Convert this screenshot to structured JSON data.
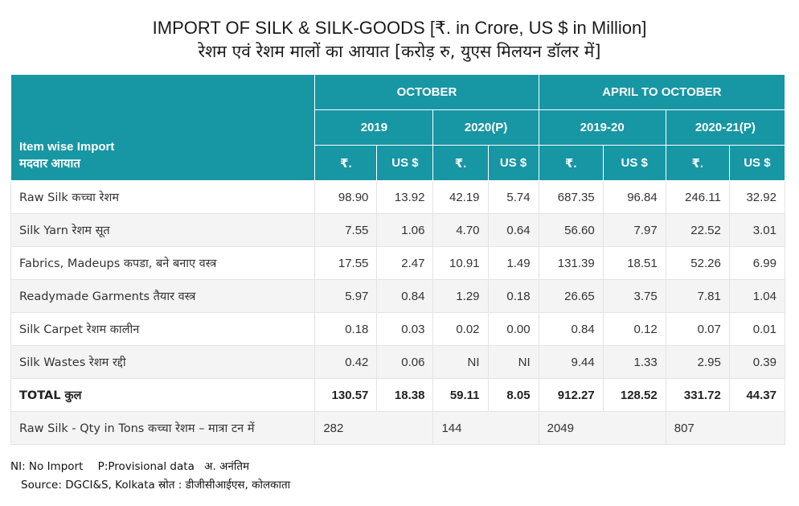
{
  "title_en": "IMPORT OF SILK & SILK-GOODS  [₹. in Crore, US $ in Million]",
  "title_hi": "रेशम एवं रेशम मालों का आयात [करोड़ रु, युएस मिलयन डॉलर में]",
  "table": {
    "item_head_en": "Item wise Import",
    "item_head_hi": "मदवार आयात",
    "groups": [
      "OCTOBER",
      "APRIL TO OCTOBER"
    ],
    "years": [
      "2019",
      "2020(P)",
      "2019-20",
      "2020-21(P)"
    ],
    "units": [
      "₹.",
      "US $",
      "₹.",
      "US $",
      "₹.",
      "US $",
      "₹.",
      "US $"
    ],
    "rows": [
      {
        "label": "Raw Silk कच्चा रेशम",
        "values": [
          "98.90",
          "13.92",
          "42.19",
          "5.74",
          "687.35",
          "96.84",
          "246.11",
          "32.92"
        ]
      },
      {
        "label": "Silk Yarn रेशम सूत",
        "values": [
          "7.55",
          "1.06",
          "4.70",
          "0.64",
          "56.60",
          "7.97",
          "22.52",
          "3.01"
        ]
      },
      {
        "label": "Fabrics, Madeups कपडा, बने बनाए वस्त्र",
        "values": [
          "17.55",
          "2.47",
          "10.91",
          "1.49",
          "131.39",
          "18.51",
          "52.26",
          "6.99"
        ]
      },
      {
        "label": "Readymade Garments तैयार वस्त्र",
        "values": [
          "5.97",
          "0.84",
          "1.29",
          "0.18",
          "26.65",
          "3.75",
          "7.81",
          "1.04"
        ]
      },
      {
        "label": "Silk Carpet रेशम कालीन",
        "values": [
          "0.18",
          "0.03",
          "0.02",
          "0.00",
          "0.84",
          "0.12",
          "0.07",
          "0.01"
        ]
      },
      {
        "label": "Silk Wastes रेशम रद्दी",
        "values": [
          "0.42",
          "0.06",
          "NI",
          "NI",
          "9.44",
          "1.33",
          "2.95",
          "0.39"
        ]
      }
    ],
    "total": {
      "label": "TOTAL कुल",
      "values": [
        "130.57",
        "18.38",
        "59.11",
        "8.05",
        "912.27",
        "128.52",
        "331.72",
        "44.37"
      ]
    },
    "qty": {
      "label": "Raw Silk - Qty in Tons कच्चा रेशम – मात्रा टन में",
      "values": [
        "282",
        "144",
        "2049",
        "807"
      ]
    }
  },
  "footer": {
    "note_ni": "NI: No Import",
    "note_p": "P:Provisional data",
    "note_hi": "अ. अनंतिम",
    "source": "Source: DGCI&S, Kolkata स्रोत : डीजीसीआईएस, कोलकाता"
  }
}
